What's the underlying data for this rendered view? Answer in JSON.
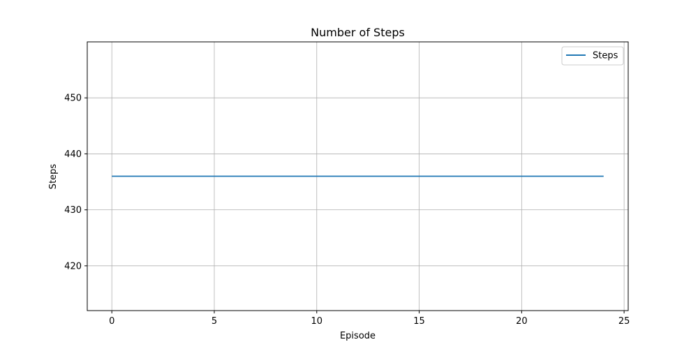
{
  "chart_data": {
    "type": "line",
    "title": "Number of Steps",
    "xlabel": "Episode",
    "ylabel": "Steps",
    "xlim": [
      -1.2,
      25.2
    ],
    "ylim": [
      412,
      460
    ],
    "xticks": [
      0,
      5,
      10,
      15,
      20,
      25
    ],
    "yticks": [
      420,
      430,
      440,
      450
    ],
    "grid": true,
    "legend_position": "top-right",
    "series": [
      {
        "name": "Steps",
        "color": "#1f77b4",
        "x": [
          0,
          1,
          2,
          3,
          4,
          5,
          6,
          7,
          8,
          9,
          10,
          11,
          12,
          13,
          14,
          15,
          16,
          17,
          18,
          19,
          20,
          21,
          22,
          23,
          24
        ],
        "y": [
          436,
          436,
          436,
          436,
          436,
          436,
          436,
          436,
          436,
          436,
          436,
          436,
          436,
          436,
          436,
          436,
          436,
          436,
          436,
          436,
          436,
          436,
          436,
          436,
          436
        ]
      }
    ]
  }
}
